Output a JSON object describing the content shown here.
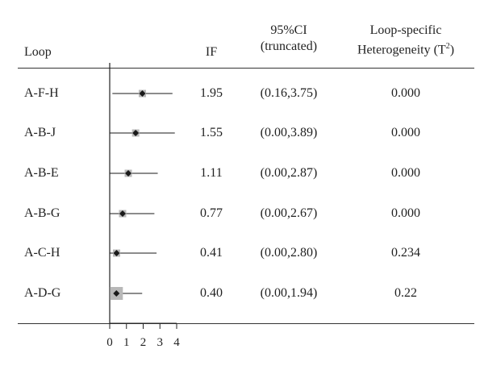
{
  "headers": {
    "loop": "Loop",
    "if": "IF",
    "ci_line1": "95%CI",
    "ci_line2": "(truncated)",
    "het_line1": "Loop-specific",
    "het_line2_prefix": "Heterogeneity (T",
    "het_line2_sup": "2",
    "het_line2_suffix": ")"
  },
  "rows": [
    {
      "loop": "A-F-H",
      "if": "1.95",
      "ci": "(0.16,3.75)",
      "het": "0.000"
    },
    {
      "loop": "A-B-J",
      "if": "1.55",
      "ci": "(0.00,3.89)",
      "het": "0.000"
    },
    {
      "loop": "A-B-E",
      "if": "1.11",
      "ci": "(0.00,2.87)",
      "het": "0.000"
    },
    {
      "loop": "A-B-G",
      "if": "0.77",
      "ci": "(0.00,2.67)",
      "het": "0.000"
    },
    {
      "loop": "A-C-H",
      "if": "0.41",
      "ci": "(0.00,2.80)",
      "het": "0.234"
    },
    {
      "loop": "A-D-G",
      "if": "0.40",
      "ci": "(0.00,1.94)",
      "het": "0.22"
    }
  ],
  "chart_data": {
    "type": "scatter",
    "categories": [
      "A-F-H",
      "A-B-J",
      "A-B-E",
      "A-B-G",
      "A-C-H",
      "A-D-G"
    ],
    "series": [
      {
        "estimate": [
          1.95,
          1.55,
          1.11,
          0.77,
          0.41,
          0.4
        ],
        "ci_low": [
          0.16,
          0.0,
          0.0,
          0.0,
          0.0,
          0.0
        ],
        "ci_high": [
          3.75,
          3.89,
          2.87,
          2.67,
          2.8,
          1.94
        ]
      }
    ],
    "xticks": [
      "0",
      "1",
      "2",
      "3",
      "4"
    ],
    "xlim": [
      0,
      4
    ],
    "grid": false,
    "colors": {
      "marker": "#1a1a1a",
      "box": "#b8b8b8",
      "line": "#1a1a1a"
    }
  }
}
